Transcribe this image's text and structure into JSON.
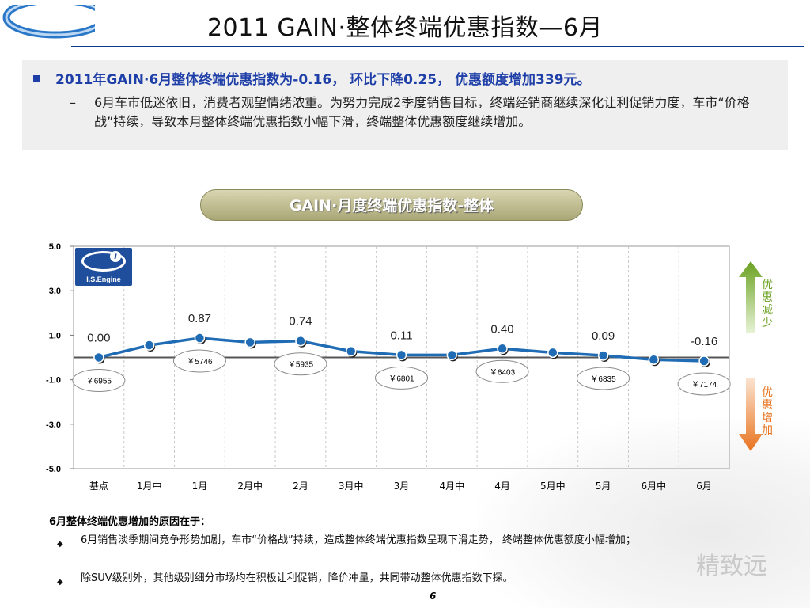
{
  "title": "2011 GAIN·整体终端优惠指数—6月",
  "summary": {
    "headline": "2011年GAIN·6月整体终端优惠指数为-0.16， 环比下降0.25， 优惠额度增加339元。",
    "detail": "6月车市低迷依旧，消费者观望情绪浓重。为努力完成2季度销售目标，终端经销商继续深化让利促销力度，车市“价格战”持续，导致本月整体终端优惠指数小幅下滑，终端整体优惠额度继续增加。"
  },
  "chart_title": "GAIN·月度终端优惠指数-整体",
  "logo_text": "I.S.Engine",
  "side_labels": {
    "up": "优惠减少",
    "down": "优惠增加"
  },
  "colors": {
    "line": "#1f6cb5",
    "baseline": "#555555",
    "up_arrow": "#6aa121",
    "down_arrow": "#e8731f"
  },
  "chart_data": {
    "type": "line",
    "categories": [
      "基点",
      "1月中",
      "1月",
      "2月中",
      "2月",
      "3月中",
      "3月",
      "4月中",
      "4月",
      "5月中",
      "5月",
      "6月中",
      "6月"
    ],
    "values": [
      0.0,
      0.55,
      0.87,
      0.68,
      0.74,
      0.28,
      0.11,
      0.11,
      0.4,
      0.22,
      0.09,
      -0.1,
      -0.16
    ],
    "data_labels": [
      "0.00",
      "",
      "0.87",
      "",
      "0.74",
      "",
      "0.11",
      "",
      "0.40",
      "",
      "0.09",
      "",
      "-0.16"
    ],
    "price_labels": [
      "￥6955",
      "",
      "￥5746",
      "",
      "￥5935",
      "",
      "￥6801",
      "",
      "￥6403",
      "",
      "￥6835",
      "",
      "￥7174"
    ],
    "yticks": [
      "5.0",
      "3.0",
      "1.0",
      "-1.0",
      "-3.0",
      "-5.0"
    ],
    "ylim": [
      -5,
      5
    ],
    "grid": true
  },
  "reasons": {
    "title": "6月整体终端优惠增加的原因在于：",
    "items": [
      "6月销售淡季期间竞争形势加剧，车市“价格战”持续，造成整体终端优惠指数呈现下滑走势， 终端整体优惠额度小幅增加；",
      "除SUV级别外，其他级别细分市场均在积极让利促销，降价冲量，共同带动整体优惠指数下探。"
    ]
  },
  "page_number": "6",
  "brand_text": "精致远"
}
